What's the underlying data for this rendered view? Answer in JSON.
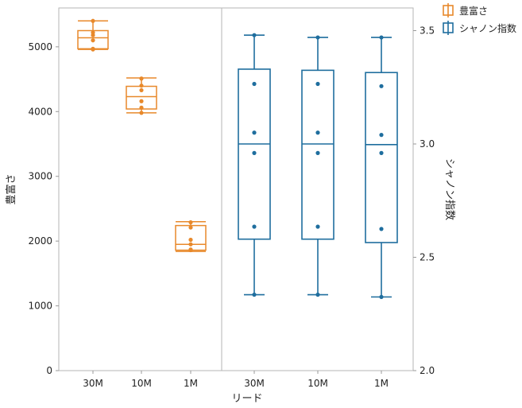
{
  "chart_data": {
    "type": "box",
    "xlabel": "リード",
    "categories_left": [
      "30M",
      "10M",
      "1M"
    ],
    "categories_right": [
      "30M",
      "10M",
      "1M"
    ],
    "left_axis": {
      "label": "豊富さ",
      "ylim": [
        0,
        5600
      ],
      "ticks": [
        0,
        1000,
        2000,
        3000,
        4000,
        5000
      ]
    },
    "right_axis": {
      "label": "シャノン指数",
      "ylim": [
        2.0,
        3.6
      ],
      "ticks": [
        2.0,
        2.5,
        3.0,
        3.5
      ]
    },
    "legend": {
      "placement": "top-right",
      "entries": [
        "豊富さ",
        "シャノン指数"
      ]
    },
    "series": [
      {
        "name": "豊富さ",
        "color": "#E8892B",
        "axis": "left",
        "boxes": [
          {
            "category": "30M",
            "min": 4960,
            "q1": 4970,
            "median": 5140,
            "q3": 5250,
            "max": 5400,
            "points": [
              4960,
              4970,
              5100,
              5180,
              5220,
              5400
            ]
          },
          {
            "category": "10M",
            "min": 3980,
            "q1": 4040,
            "median": 4230,
            "q3": 4390,
            "max": 4520,
            "points": [
              3980,
              4060,
              4160,
              4330,
              4400,
              4510
            ]
          },
          {
            "category": "1M",
            "min": 1840,
            "q1": 1860,
            "median": 1950,
            "q3": 2240,
            "max": 2300,
            "points": [
              1860,
              1870,
              1950,
              2020,
              2210,
              2290
            ]
          }
        ]
      },
      {
        "name": "シャノン指数",
        "color": "#1F6E9E",
        "axis": "right",
        "boxes": [
          {
            "category": "30M",
            "min": 2.335,
            "q1": 2.58,
            "median": 3.0,
            "q3": 3.33,
            "max": 3.48,
            "points": [
              2.335,
              2.635,
              2.96,
              3.05,
              3.265,
              3.48
            ]
          },
          {
            "category": "10M",
            "min": 2.335,
            "q1": 2.58,
            "median": 3.0,
            "q3": 3.325,
            "max": 3.47,
            "points": [
              2.335,
              2.635,
              2.96,
              3.05,
              3.265,
              3.47
            ]
          },
          {
            "category": "1M",
            "min": 2.325,
            "q1": 2.565,
            "median": 2.997,
            "q3": 3.315,
            "max": 3.47,
            "points": [
              2.325,
              2.625,
              2.96,
              3.04,
              3.255,
              3.47
            ]
          }
        ]
      }
    ],
    "grid": false
  }
}
